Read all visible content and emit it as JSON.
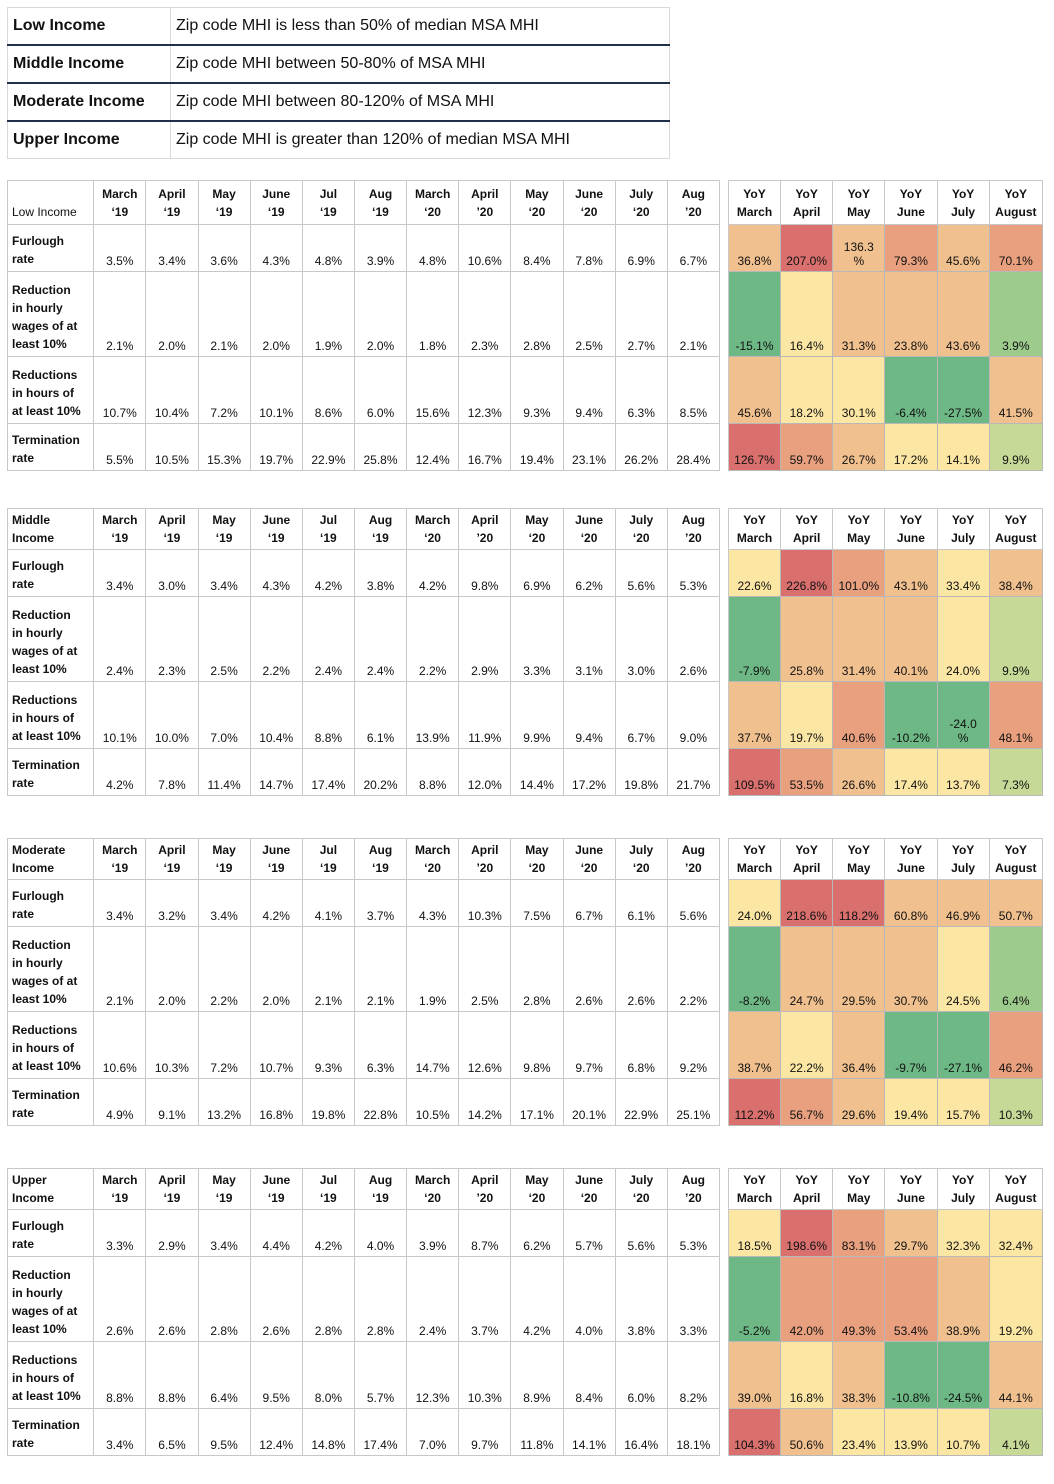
{
  "legend": [
    {
      "label": "Low Income",
      "desc": "Zip code MHI is less than 50% of median MSA MHI"
    },
    {
      "label": "Middle Income",
      "desc": "Zip code MHI between 50-80% of MSA MHI"
    },
    {
      "label": "Moderate Income",
      "desc": "Zip code MHI between 80-120% of MSA MHI"
    },
    {
      "label": "Upper Income",
      "desc": "Zip code MHI is greater than 120% of median MSA MHI"
    }
  ],
  "columns": [
    [
      "March",
      "‘19"
    ],
    [
      "April",
      "‘19"
    ],
    [
      "May",
      "‘19"
    ],
    [
      "June",
      "‘19"
    ],
    [
      "Jul",
      "‘19"
    ],
    [
      "Aug",
      "‘19"
    ],
    [
      "March",
      "‘20"
    ],
    [
      "April",
      "’20"
    ],
    [
      "May",
      "‘20"
    ],
    [
      "June",
      "‘20"
    ],
    [
      "July",
      "‘20"
    ],
    [
      "Aug",
      "’20"
    ]
  ],
  "yoy_columns": [
    [
      "YoY",
      "March"
    ],
    [
      "YoY",
      "April"
    ],
    [
      "YoY",
      "May"
    ],
    [
      "YoY",
      "June"
    ],
    [
      "YoY",
      "July"
    ],
    [
      "YoY",
      "August"
    ]
  ],
  "colors": {
    "red": "#d9706e",
    "salmon": "#e8a07f",
    "light_orange": "#f1c08f",
    "light_yellow": "#fbe6a3",
    "light_green": "#c6d996",
    "mid_green": "#9dcb8c",
    "green": "#6db885"
  },
  "sections": [
    {
      "title": [
        "Low Income"
      ],
      "rows": [
        {
          "label": [
            "Furlough",
            "rate"
          ],
          "values": [
            "3.5%",
            "3.4%",
            "3.6%",
            "4.3%",
            "4.8%",
            "3.9%",
            "4.8%",
            "10.6%",
            "8.4%",
            "7.8%",
            "6.9%",
            "6.7%"
          ],
          "yoy": [
            "36.8%",
            "207.0%",
            "136.3\n%",
            "79.3%",
            "45.6%",
            "70.1%"
          ],
          "yoy_colors": [
            "light_orange",
            "red",
            "light_orange",
            "salmon",
            "light_orange",
            "salmon"
          ]
        },
        {
          "label": [
            "Reduction",
            "in hourly",
            "wages of at",
            "least 10%"
          ],
          "values": [
            "2.1%",
            "2.0%",
            "2.1%",
            "2.0%",
            "1.9%",
            "2.0%",
            "1.8%",
            "2.3%",
            "2.8%",
            "2.5%",
            "2.7%",
            "2.1%"
          ],
          "yoy": [
            "-15.1%",
            "16.4%",
            "31.3%",
            "23.8%",
            "43.6%",
            "3.9%"
          ],
          "yoy_colors": [
            "green",
            "light_yellow",
            "light_orange",
            "light_orange",
            "light_orange",
            "mid_green"
          ]
        },
        {
          "label": [
            "Reductions",
            "in hours of",
            "at least 10%"
          ],
          "values": [
            "10.7%",
            "10.4%",
            "7.2%",
            "10.1%",
            "8.6%",
            "6.0%",
            "15.6%",
            "12.3%",
            "9.3%",
            "9.4%",
            "6.3%",
            "8.5%"
          ],
          "yoy": [
            "45.6%",
            "18.2%",
            "30.1%",
            "-6.4%",
            "-27.5%",
            "41.5%"
          ],
          "yoy_colors": [
            "light_orange",
            "light_yellow",
            "light_yellow",
            "green",
            "green",
            "light_orange"
          ]
        },
        {
          "label": [
            "Termination",
            "rate"
          ],
          "values": [
            "5.5%",
            "10.5%",
            "15.3%",
            "19.7%",
            "22.9%",
            "25.8%",
            "12.4%",
            "16.7%",
            "19.4%",
            "23.1%",
            "26.2%",
            "28.4%"
          ],
          "yoy": [
            "126.7%",
            "59.7%",
            "26.7%",
            "17.2%",
            "14.1%",
            "9.9%"
          ],
          "yoy_colors": [
            "red",
            "salmon",
            "light_orange",
            "light_yellow",
            "light_yellow",
            "light_green"
          ]
        }
      ]
    },
    {
      "title": [
        "Middle",
        "Income"
      ],
      "rows": [
        {
          "label": [
            "Furlough",
            "rate"
          ],
          "values": [
            "3.4%",
            "3.0%",
            "3.4%",
            "4.3%",
            "4.2%",
            "3.8%",
            "4.2%",
            "9.8%",
            "6.9%",
            "6.2%",
            "5.6%",
            "5.3%"
          ],
          "yoy": [
            "22.6%",
            "226.8%",
            "101.0%",
            "43.1%",
            "33.4%",
            "38.4%"
          ],
          "yoy_colors": [
            "light_yellow",
            "red",
            "salmon",
            "light_orange",
            "light_yellow",
            "light_orange"
          ]
        },
        {
          "label": [
            "Reduction",
            "in hourly",
            "wages of at",
            "least 10%"
          ],
          "values": [
            "2.4%",
            "2.3%",
            "2.5%",
            "2.2%",
            "2.4%",
            "2.4%",
            "2.2%",
            "2.9%",
            "3.3%",
            "3.1%",
            "3.0%",
            "2.6%"
          ],
          "yoy": [
            "-7.9%",
            "25.8%",
            "31.4%",
            "40.1%",
            "24.0%",
            "9.9%"
          ],
          "yoy_colors": [
            "green",
            "light_orange",
            "light_orange",
            "light_orange",
            "light_yellow",
            "light_green"
          ]
        },
        {
          "label": [
            "Reductions",
            "in hours of",
            "at least 10%"
          ],
          "values": [
            "10.1%",
            "10.0%",
            "7.0%",
            "10.4%",
            "8.8%",
            "6.1%",
            "13.9%",
            "11.9%",
            "9.9%",
            "9.4%",
            "6.7%",
            "9.0%"
          ],
          "yoy": [
            "37.7%",
            "19.7%",
            "40.6%",
            "-10.2%",
            "-24.0\n%",
            "48.1%"
          ],
          "yoy_colors": [
            "light_orange",
            "light_yellow",
            "salmon",
            "green",
            "green",
            "salmon"
          ]
        },
        {
          "label": [
            "Termination",
            "rate"
          ],
          "values": [
            "4.2%",
            "7.8%",
            "11.4%",
            "14.7%",
            "17.4%",
            "20.2%",
            "8.8%",
            "12.0%",
            "14.4%",
            "17.2%",
            "19.8%",
            "21.7%"
          ],
          "yoy": [
            "109.5%",
            "53.5%",
            "26.6%",
            "17.4%",
            "13.7%",
            "7.3%"
          ],
          "yoy_colors": [
            "red",
            "salmon",
            "light_orange",
            "light_yellow",
            "light_yellow",
            "light_green"
          ]
        }
      ]
    },
    {
      "title": [
        "Moderate",
        "Income"
      ],
      "rows": [
        {
          "label": [
            "Furlough",
            "rate"
          ],
          "values": [
            "3.4%",
            "3.2%",
            "3.4%",
            "4.2%",
            "4.1%",
            "3.7%",
            "4.3%",
            "10.3%",
            "7.5%",
            "6.7%",
            "6.1%",
            "5.6%"
          ],
          "yoy": [
            "24.0%",
            "218.6%",
            "118.2%",
            "60.8%",
            "46.9%",
            "50.7%"
          ],
          "yoy_colors": [
            "light_yellow",
            "red",
            "red",
            "light_orange",
            "light_orange",
            "light_orange"
          ]
        },
        {
          "label": [
            "Reduction",
            "in hourly",
            "wages of at",
            "least 10%"
          ],
          "values": [
            "2.1%",
            "2.0%",
            "2.2%",
            "2.0%",
            "2.1%",
            "2.1%",
            "1.9%",
            "2.5%",
            "2.8%",
            "2.6%",
            "2.6%",
            "2.2%"
          ],
          "yoy": [
            "-8.2%",
            "24.7%",
            "29.5%",
            "30.7%",
            "24.5%",
            "6.4%"
          ],
          "yoy_colors": [
            "green",
            "light_orange",
            "light_orange",
            "light_orange",
            "light_yellow",
            "mid_green"
          ]
        },
        {
          "label": [
            "Reductions",
            "in hours of",
            "at least 10%"
          ],
          "values": [
            "10.6%",
            "10.3%",
            "7.2%",
            "10.7%",
            "9.3%",
            "6.3%",
            "14.7%",
            "12.6%",
            "9.8%",
            "9.7%",
            "6.8%",
            "9.2%"
          ],
          "yoy": [
            "38.7%",
            "22.2%",
            "36.4%",
            "-9.7%",
            "-27.1%",
            "46.2%"
          ],
          "yoy_colors": [
            "light_orange",
            "light_yellow",
            "light_orange",
            "green",
            "green",
            "salmon"
          ]
        },
        {
          "label": [
            "Termination",
            "rate"
          ],
          "values": [
            "4.9%",
            "9.1%",
            "13.2%",
            "16.8%",
            "19.8%",
            "22.8%",
            "10.5%",
            "14.2%",
            "17.1%",
            "20.1%",
            "22.9%",
            "25.1%"
          ],
          "yoy": [
            "112.2%",
            "56.7%",
            "29.6%",
            "19.4%",
            "15.7%",
            "10.3%"
          ],
          "yoy_colors": [
            "red",
            "salmon",
            "light_orange",
            "light_yellow",
            "light_yellow",
            "light_green"
          ]
        }
      ]
    },
    {
      "title": [
        "Upper",
        "Income"
      ],
      "rows": [
        {
          "label": [
            "Furlough",
            "rate"
          ],
          "values": [
            "3.3%",
            "2.9%",
            "3.4%",
            "4.4%",
            "4.2%",
            "4.0%",
            "3.9%",
            "8.7%",
            "6.2%",
            "5.7%",
            "5.6%",
            "5.3%"
          ],
          "yoy": [
            "18.5%",
            "198.6%",
            "83.1%",
            "29.7%",
            "32.3%",
            "32.4%"
          ],
          "yoy_colors": [
            "light_yellow",
            "red",
            "salmon",
            "light_orange",
            "light_yellow",
            "light_yellow"
          ]
        },
        {
          "label": [
            "Reduction",
            "in hourly",
            "wages of at",
            "least 10%"
          ],
          "values": [
            "2.6%",
            "2.6%",
            "2.8%",
            "2.6%",
            "2.8%",
            "2.8%",
            "2.4%",
            "3.7%",
            "4.2%",
            "4.0%",
            "3.8%",
            "3.3%"
          ],
          "yoy": [
            "-5.2%",
            "42.0%",
            "49.3%",
            "53.4%",
            "38.9%",
            "19.2%"
          ],
          "yoy_colors": [
            "green",
            "salmon",
            "salmon",
            "salmon",
            "light_orange",
            "light_yellow"
          ]
        },
        {
          "label": [
            "Reductions",
            "in hours of",
            "at least 10%"
          ],
          "values": [
            "8.8%",
            "8.8%",
            "6.4%",
            "9.5%",
            "8.0%",
            "5.7%",
            "12.3%",
            "10.3%",
            "8.9%",
            "8.4%",
            "6.0%",
            "8.2%"
          ],
          "yoy": [
            "39.0%",
            "16.8%",
            "38.3%",
            "-10.8%",
            "-24.5%",
            "44.1%"
          ],
          "yoy_colors": [
            "light_orange",
            "light_yellow",
            "light_orange",
            "green",
            "green",
            "light_orange"
          ]
        },
        {
          "label": [
            "Termination",
            "rate"
          ],
          "values": [
            "3.4%",
            "6.5%",
            "9.5%",
            "12.4%",
            "14.8%",
            "17.4%",
            "7.0%",
            "9.7%",
            "11.8%",
            "14.1%",
            "16.4%",
            "18.1%"
          ],
          "yoy": [
            "104.3%",
            "50.6%",
            "23.4%",
            "13.9%",
            "10.7%",
            "4.1%"
          ],
          "yoy_colors": [
            "red",
            "light_orange",
            "light_yellow",
            "light_yellow",
            "light_yellow",
            "light_green"
          ]
        }
      ]
    }
  ]
}
